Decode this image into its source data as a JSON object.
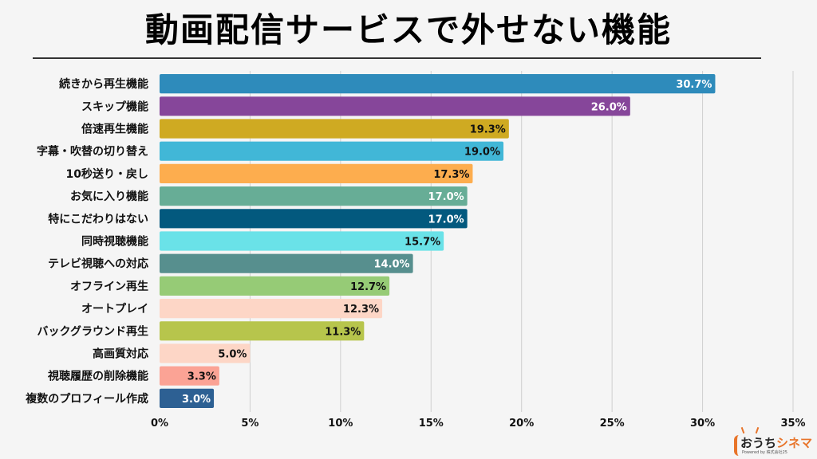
{
  "title": "動画配信サービスで外せない機能",
  "chart_data": {
    "type": "bar",
    "orientation": "horizontal",
    "title": "動画配信サービスで外せない機能",
    "xlabel": "",
    "ylabel": "",
    "xlim": [
      0,
      35
    ],
    "grid": true,
    "x_ticks": [
      0,
      5,
      10,
      15,
      20,
      25,
      30,
      35
    ],
    "x_tick_labels": [
      "0%",
      "5%",
      "10%",
      "15%",
      "20%",
      "25%",
      "30%",
      "35%"
    ],
    "categories": [
      "続きから再生機能",
      "スキップ機能",
      "倍速再生機能",
      "字幕・吹替の切り替え",
      "10秒送り・戻し",
      "お気に入り機能",
      "特にこだわりはない",
      "同時視聴機能",
      "テレビ視聴への対応",
      "オフライン再生",
      "オートプレイ",
      "バックグラウンド再生",
      "高画質対応",
      "視聴履歴の削除機能",
      "複数のプロフィール作成"
    ],
    "values": [
      30.7,
      26.0,
      19.3,
      19.0,
      17.3,
      17.0,
      17.0,
      15.7,
      14.0,
      12.7,
      12.3,
      11.3,
      5.0,
      3.3,
      3.0
    ],
    "value_labels": [
      "30.7%",
      "26.0%",
      "19.3%",
      "19.0%",
      "17.3%",
      "17.0%",
      "17.0%",
      "15.7%",
      "14.0%",
      "12.7%",
      "12.3%",
      "11.3%",
      "5.0%",
      "3.3%",
      "3.0%"
    ],
    "colors": [
      "#2e8bbb",
      "#86469a",
      "#cfaa22",
      "#41b7d7",
      "#fdad4e",
      "#67ad96",
      "#03597e",
      "#6ae2e8",
      "#578f8e",
      "#96cb76",
      "#fdd6c6",
      "#b7c54c",
      "#fdd6c6",
      "#fba395",
      "#2d6093"
    ],
    "label_colors": [
      "#ffffff",
      "#ffffff",
      "#111111",
      "#111111",
      "#111111",
      "#ffffff",
      "#ffffff",
      "#111111",
      "#ffffff",
      "#111111",
      "#111111",
      "#111111",
      "#111111",
      "#111111",
      "#ffffff"
    ]
  },
  "logo": {
    "text_part1": "おうち",
    "text_part2": "シネマ",
    "subtext": "Powered by 株式会社25"
  }
}
